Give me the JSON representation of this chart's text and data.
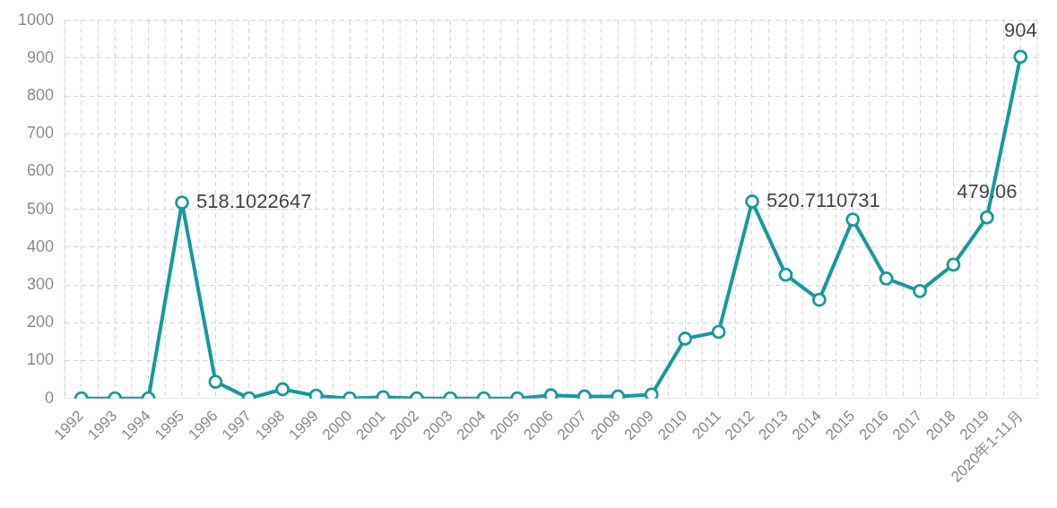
{
  "chart_data": {
    "type": "line",
    "categories": [
      "1992",
      "1993",
      "1994",
      "1995",
      "1996",
      "1997",
      "1998",
      "1999",
      "2000",
      "2001",
      "2002",
      "2003",
      "2004",
      "2005",
      "2006",
      "2007",
      "2008",
      "2009",
      "2010",
      "2011",
      "2012",
      "2013",
      "2014",
      "2015",
      "2016",
      "2017",
      "2018",
      "2019",
      "2020年1-11月"
    ],
    "series": [
      {
        "color": "#17999a",
        "values": [
          0,
          0,
          0,
          518.1022647,
          44,
          0,
          24,
          7,
          0,
          3,
          0,
          0,
          0,
          0,
          8,
          5,
          5,
          10,
          158,
          176,
          520.7110731,
          327,
          261,
          473,
          317,
          284,
          354,
          479.06,
          904
        ],
        "value_labels": [
          null,
          null,
          null,
          "518.1022647",
          null,
          null,
          null,
          null,
          null,
          null,
          null,
          null,
          null,
          null,
          null,
          null,
          null,
          null,
          null,
          null,
          "520.7110731",
          null,
          null,
          null,
          null,
          null,
          null,
          "479.06",
          "904"
        ]
      }
    ],
    "ylim": [
      0,
      1000
    ],
    "yticks": [
      0,
      100,
      200,
      300,
      400,
      500,
      600,
      700,
      800,
      900,
      1000
    ],
    "grid": true,
    "marker": "circle",
    "line_style": "solid"
  }
}
